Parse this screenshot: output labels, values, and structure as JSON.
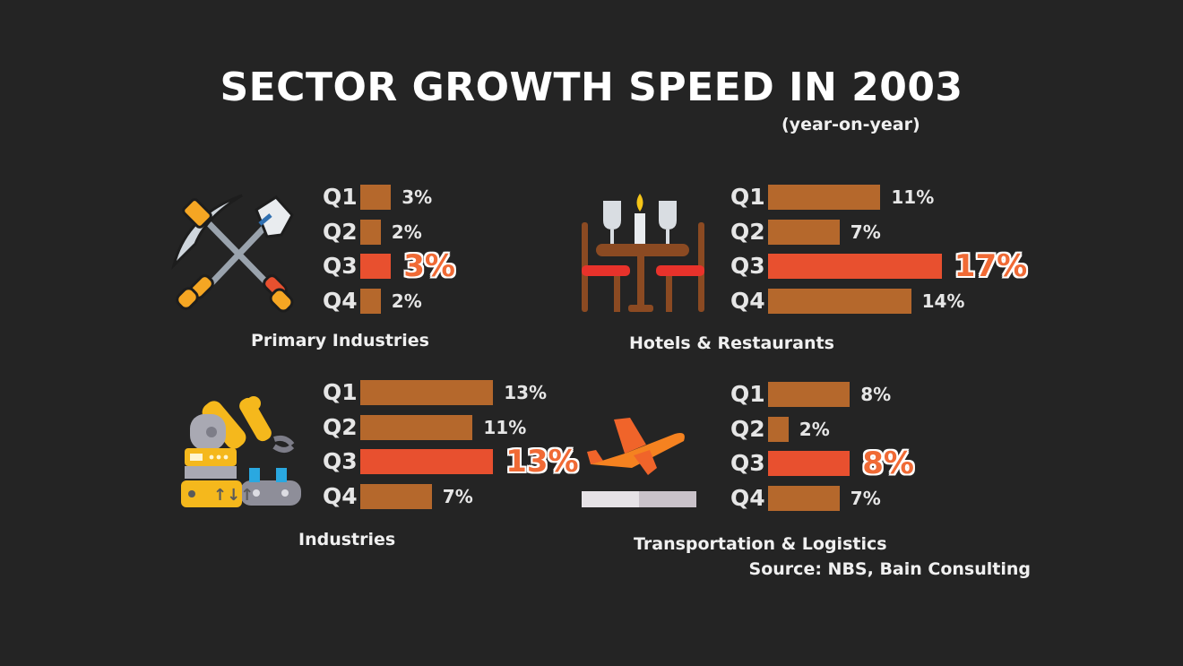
{
  "title": "SECTOR GROWTH SPEED IN 2003",
  "subtitle": "(year-on-year)",
  "source": "Source: NBS, Bain Consulting",
  "colors": {
    "bar": "#b5682c",
    "highlight": "#e8502f",
    "background": "#242424"
  },
  "chart_data": [
    {
      "type": "bar",
      "orientation": "horizontal",
      "title": "Primary Industries",
      "icon": "pickaxe-shovel-icon",
      "categories": [
        "Q1",
        "Q2",
        "Q3",
        "Q4"
      ],
      "values": [
        3,
        2,
        3,
        2
      ],
      "labels": [
        "3%",
        "2%",
        "3%",
        "2%"
      ],
      "highlight": "Q3",
      "unit": "%"
    },
    {
      "type": "bar",
      "orientation": "horizontal",
      "title": "Hotels & Restaurants",
      "icon": "dining-table-icon",
      "categories": [
        "Q1",
        "Q2",
        "Q3",
        "Q4"
      ],
      "values": [
        11,
        7,
        17,
        14
      ],
      "labels": [
        "11%",
        "7%",
        "17%",
        "14%"
      ],
      "highlight": "Q3",
      "unit": "%"
    },
    {
      "type": "bar",
      "orientation": "horizontal",
      "title": "Industries",
      "icon": "robot-arm-icon",
      "categories": [
        "Q1",
        "Q2",
        "Q3",
        "Q4"
      ],
      "values": [
        13,
        11,
        13,
        7
      ],
      "labels": [
        "13%",
        "11%",
        "13%",
        "7%"
      ],
      "highlight": "Q3",
      "unit": "%"
    },
    {
      "type": "bar",
      "orientation": "horizontal",
      "title": "Transportation & Logistics",
      "icon": "airplane-takeoff-icon",
      "categories": [
        "Q1",
        "Q2",
        "Q3",
        "Q4"
      ],
      "values": [
        8,
        2,
        8,
        7
      ],
      "labels": [
        "8%",
        "2%",
        "8%",
        "7%"
      ],
      "highlight": "Q3",
      "unit": "%"
    }
  ]
}
